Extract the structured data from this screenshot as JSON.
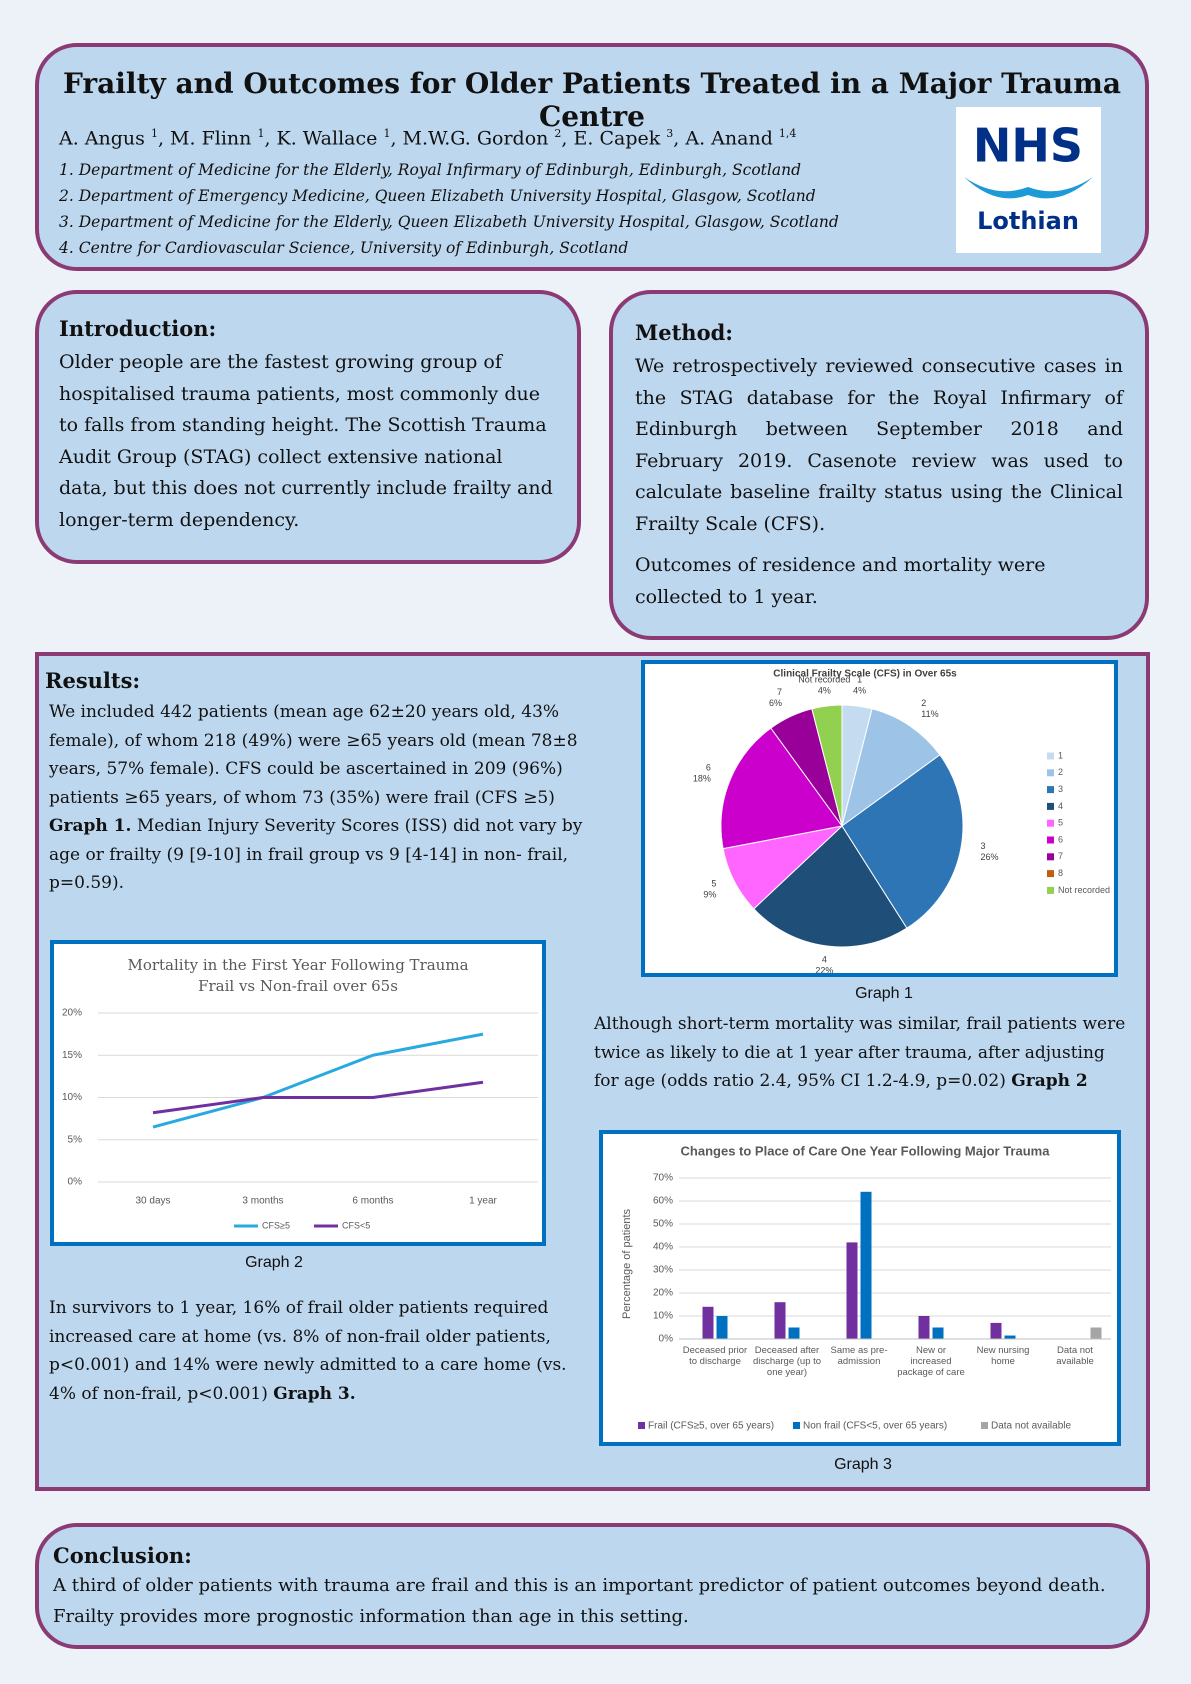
{
  "header": {
    "title": "Frailty and Outcomes for Older Patients Treated in a Major Trauma Centre",
    "authors": [
      {
        "name": "A. Angus",
        "sup": "1"
      },
      {
        "name": ", M. Flinn",
        "sup": "1"
      },
      {
        "name": ", K. Wallace",
        "sup": "1"
      },
      {
        "name": ", M.W.G. Gordon",
        "sup": "2"
      },
      {
        "name": ", E. Capek",
        "sup": "3"
      },
      {
        "name": ", A. Anand",
        "sup": "1,4"
      }
    ],
    "affiliations": [
      "1. Department of Medicine for the Elderly, Royal Infirmary of Edinburgh, Edinburgh, Scotland",
      "2. Department of Emergency Medicine, Queen Elizabeth University Hospital, Glasgow, Scotland",
      "3. Department of Medicine for the Elderly, Queen Elizabeth University Hospital, Glasgow, Scotland",
      "4. Centre for Cardiovascular Science, University of Edinburgh, Scotland"
    ],
    "logo": {
      "nhs": "NHS",
      "name": "Lothian"
    }
  },
  "introduction": {
    "heading": "Introduction:",
    "text": "Older people are the fastest growing group of hospitalised trauma patients, most commonly due to falls from standing height. The Scottish Trauma Audit Group (STAG) collect extensive national data, but this does not currently include frailty and longer-term dependency."
  },
  "method": {
    "heading": "Method:",
    "paragraphs": [
      "We retrospectively reviewed consecutive cases in the STAG database for the Royal Infirmary of Edinburgh between September 2018 and February 2019. Casenote review was used to calculate baseline frailty status using the Clinical Frailty Scale (CFS).",
      "Outcomes of residence and mortality were collected to 1 year."
    ]
  },
  "results": {
    "heading": "Results:",
    "paragraphs": [
      {
        "parts": [
          {
            "text": "We included 442 patients (mean age 62±20 years old, 43% female), of whom 218 (49%) were ≥65 years old (mean 78±8 years, 57% female). CFS could be ascertained in 209 (96%) patients ≥65 years, of whom 73 (35%) were frail (CFS ≥5)"
          },
          {
            "text": "Graph 1.",
            "bold": true
          },
          {
            "text": "Median Injury Severity Scores (ISS) did not vary by age or frailty (9 [9-10] in frail group vs 9 [4-14] in non- frail, p=0.59)."
          }
        ]
      },
      {
        "parts": [
          {
            "text": "Although short-term mortality was similar, frail patients were twice as likely to die at 1 year after trauma, after adjusting for age (odds ratio 2.4, 95% CI 1.2-4.9, p=0.02)"
          },
          {
            "text": "Graph 2",
            "bold": true
          }
        ]
      },
      {
        "parts": [
          {
            "text": "In survivors to 1 year, 16% of frail older patients required increased care at home (vs. 8% of non-frail older patients, p<0.001) and 14% were newly admitted to a care home (vs. 4% of non-frail, p<0.001)"
          },
          {
            "text": "Graph 3.",
            "bold": true
          }
        ]
      }
    ],
    "captions": [
      "Graph 1",
      "Graph 2",
      "Graph 3"
    ]
  },
  "conclusion": {
    "heading": "Conclusion:",
    "text": "A third of older patients with trauma are frail and this is an important predictor of patient outcomes beyond death. Frailty provides more prognostic information than age in this setting."
  },
  "chart_data": [
    {
      "type": "pie",
      "title": "Clinical Frailty Scale (CFS) in Over 65s",
      "categories": [
        "1",
        "2",
        "3",
        "4",
        "5",
        "6",
        "7",
        "8",
        "Not recorded"
      ],
      "values": [
        4,
        11,
        26,
        22,
        9,
        18,
        6,
        0,
        4
      ],
      "value_labels": [
        "4%",
        "11%",
        "26%",
        "22%",
        "9%",
        "18%",
        "6%",
        null,
        "4%"
      ],
      "colors": [
        "#c5dbf0",
        "#9dc3e6",
        "#2e75b6",
        "#1f4e79",
        "#ff66ff",
        "#cc00cc",
        "#990099",
        "#c55a11",
        "#92d050"
      ],
      "legend": "right"
    },
    {
      "type": "line",
      "title": "Mortality in the First Year Following Trauma",
      "subtitle": "Frail vs Non-frail over 65s",
      "categories": [
        "30 days",
        "3 months",
        "6 months",
        "1 year"
      ],
      "series": [
        {
          "name": "CFS≥5",
          "color": "#29a9e0",
          "values": [
            6.5,
            10,
            15,
            17.5
          ]
        },
        {
          "name": "CFS<5",
          "color": "#7030a0",
          "values": [
            8.2,
            10,
            10,
            11.8
          ]
        }
      ],
      "ylim": [
        0,
        20
      ],
      "yticks": [
        {
          "value": 0,
          "label": "0%"
        },
        {
          "value": 5,
          "label": "5%"
        },
        {
          "value": 10,
          "label": "10%"
        },
        {
          "value": 15,
          "label": "15%"
        },
        {
          "value": 20,
          "label": "20%"
        }
      ],
      "grid": true,
      "legend": "bottom"
    },
    {
      "type": "bar",
      "title": "Changes to Place of Care One Year Following Major Trauma",
      "ylabel": "Percentage of patients",
      "categories": [
        "Deceased prior to discharge",
        "Deceased after discharge (up to one year)",
        "Same as pre-admission",
        "New or increased package of care",
        "New nursing home",
        "Data not available"
      ],
      "series": [
        {
          "name": "Frail (CFS≥5, over 65 years)",
          "color": "#7030a0",
          "values": [
            14,
            16,
            42,
            10,
            7,
            null
          ]
        },
        {
          "name": "Non frail (CFS<5, over 65 years)",
          "color": "#0070c0",
          "values": [
            10,
            5,
            64,
            5,
            1.5,
            null
          ]
        },
        {
          "name": "Data not available",
          "color": "#a5a5a5",
          "values": [
            null,
            null,
            null,
            null,
            null,
            5
          ]
        }
      ],
      "ylim": [
        0,
        70
      ],
      "yticks": [
        {
          "value": 0,
          "label": "0%"
        },
        {
          "value": 10,
          "label": "10%"
        },
        {
          "value": 20,
          "label": "20%"
        },
        {
          "value": 30,
          "label": "30%"
        },
        {
          "value": 40,
          "label": "40%"
        },
        {
          "value": 50,
          "label": "50%"
        },
        {
          "value": 60,
          "label": "60%"
        },
        {
          "value": 70,
          "label": "70%"
        }
      ],
      "grid": true,
      "legend": "bottom"
    }
  ]
}
